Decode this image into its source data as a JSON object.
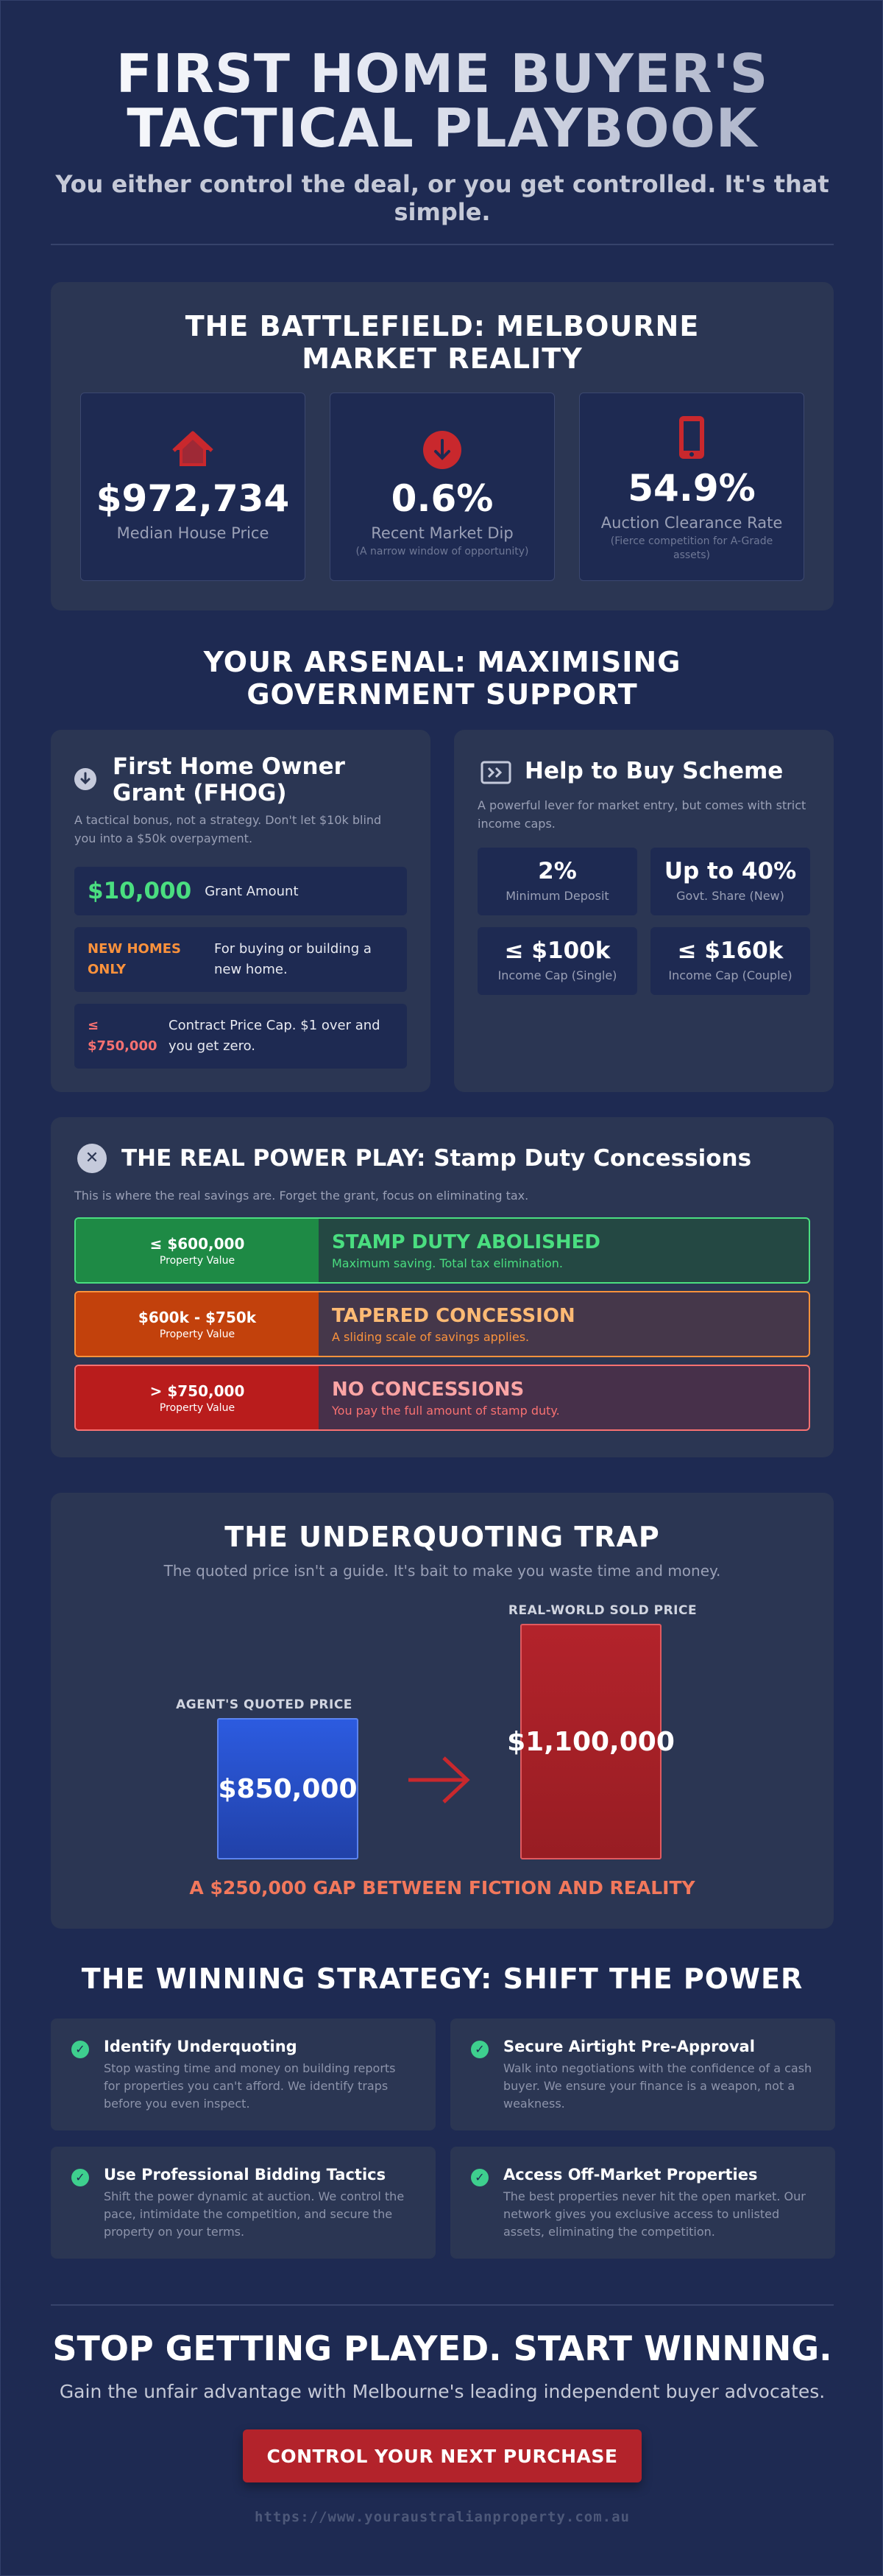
{
  "header": {
    "title_line1": "FIRST HOME BUYER'S",
    "title_line2": "TACTICAL PLAYBOOK",
    "subtitle": "You either control the deal, or you get controlled. It's that simple."
  },
  "battlefield": {
    "title": "THE BATTLEFIELD: MELBOURNE MARKET REALITY",
    "stats": [
      {
        "icon": "house-icon",
        "value": "$972,734",
        "label": "Median House Price",
        "sub": ""
      },
      {
        "icon": "arrow-down-circle-icon",
        "value": "0.6%",
        "label": "Recent Market Dip",
        "sub": "(A narrow window of opportunity)"
      },
      {
        "icon": "mobile-phone-icon",
        "value": "54.9%",
        "label": "Auction Clearance Rate",
        "sub": "(Fierce competition for A-Grade assets)"
      }
    ]
  },
  "arsenal": {
    "title": "YOUR ARSENAL: MAXIMISING GOVERNMENT SUPPORT",
    "fhog": {
      "icon": "info-circle-icon",
      "title": "First Home Owner Grant (FHOG)",
      "desc": "A tactical bonus, not a strategy. Don't let $10k blind you into a $50k overpayment.",
      "rows": [
        {
          "key": "$10,000",
          "text": "Grant Amount"
        },
        {
          "key": "NEW HOMES ONLY",
          "text": "For buying or building a new home."
        },
        {
          "key": "≤ $750,000",
          "text": "Contract Price Cap. $1 over and you get zero."
        }
      ]
    },
    "htb": {
      "icon": "ticket-icon",
      "title": "Help to Buy Scheme",
      "desc": "A powerful lever for market entry, but comes with strict income caps.",
      "cells": [
        {
          "value": "2%",
          "label": "Minimum Deposit"
        },
        {
          "value": "Up to 40%",
          "label": "Govt. Share (New)"
        },
        {
          "value": "≤ $100k",
          "label": "Income Cap (Single)"
        },
        {
          "value": "≤ $160k",
          "label": "Income Cap (Couple)"
        }
      ]
    }
  },
  "stamp": {
    "icon": "close-circle-icon",
    "title": "THE REAL POWER PLAY: Stamp Duty Concessions",
    "desc": "This is where the real savings are. Forget the grant, focus on eliminating tax.",
    "tiers": [
      {
        "range": "≤ $600,000",
        "range_sub": "Property Value",
        "head": "STAMP DUTY ABOLISHED",
        "text": "Maximum saving. Total tax elimination.",
        "color": "#1e8a45",
        "accent": "#4ade80",
        "bg": "#244843"
      },
      {
        "range": "$600k - $750k",
        "range_sub": "Property Value",
        "head": "TAPERED CONCESSION",
        "text": "A sliding scale of savings applies.",
        "color": "#c2410c",
        "accent": "#fb923c",
        "bg": "#45374a"
      },
      {
        "range": "> $750,000",
        "range_sub": "Property Value",
        "head": "NO CONCESSIONS",
        "text": "You pay the full amount of stamp duty.",
        "color": "#b91c1c",
        "accent": "#f87171",
        "bg": "#47304a"
      }
    ]
  },
  "trap": {
    "title": "THE UNDERQUOTING TRAP",
    "desc": "The quoted price isn't a guide. It's bait to make you waste time and money.",
    "quoted_label": "AGENT'S QUOTED PRICE",
    "quoted_value": "$850,000",
    "sold_label": "REAL-WORLD SOLD PRICE",
    "sold_value": "$1,100,000",
    "gap": "A $250,000 GAP BETWEEN FICTION AND REALITY"
  },
  "strategy": {
    "title": "THE WINNING STRATEGY: SHIFT THE POWER",
    "items": [
      {
        "title": "Identify Underquoting",
        "desc": "Stop wasting time and money on building reports for properties you can't afford. We identify traps before you even inspect."
      },
      {
        "title": "Secure Airtight Pre-Approval",
        "desc": "Walk into negotiations with the confidence of a cash buyer. We ensure your finance is a weapon, not a weakness."
      },
      {
        "title": "Use Professional Bidding Tactics",
        "desc": "Shift the power dynamic at auction. We control the pace, intimidate the competition, and secure the property on your terms."
      },
      {
        "title": "Access Off-Market Properties",
        "desc": "The best properties never hit the open market. Our network gives you exclusive access to unlisted assets, eliminating the competition."
      }
    ]
  },
  "footer": {
    "title": "STOP GETTING PLAYED. START WINNING.",
    "subtitle": "Gain the unfair advantage with Melbourne's leading independent buyer advocates.",
    "cta": "CONTROL YOUR NEXT PURCHASE",
    "url": "https://www.youraustralianproperty.com.au"
  }
}
